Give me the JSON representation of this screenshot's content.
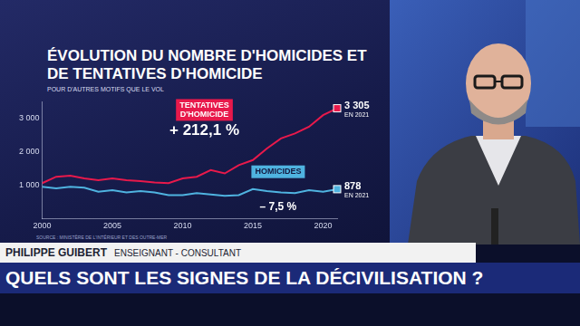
{
  "chart_data": {
    "type": "line",
    "title": "ÉVOLUTION DU NOMBRE D'HOMICIDES ET DE TENTATIVES D'HOMICIDE",
    "subtitle": "POUR D'AUTRES MOTIFS QUE LE VOL",
    "source": "SOURCE : MINISTÈRE DE L'INTÉRIEUR ET DES OUTRE-MER",
    "x": [
      2000,
      2001,
      2002,
      2003,
      2004,
      2005,
      2006,
      2007,
      2008,
      2009,
      2010,
      2011,
      2012,
      2013,
      2014,
      2015,
      2016,
      2017,
      2018,
      2019,
      2020,
      2021
    ],
    "xlim": [
      2000,
      2021
    ],
    "xticks": [
      2000,
      2005,
      2010,
      2015,
      2020
    ],
    "ylim": [
      0,
      3500
    ],
    "yticks": [
      {
        "value": 1000,
        "label": "1 000"
      },
      {
        "value": 2000,
        "label": "2 000"
      },
      {
        "value": 3000,
        "label": "3 000"
      }
    ],
    "grid": false,
    "series": [
      {
        "name": "TENTATIVES D'HOMICIDE",
        "color": "#e8194b",
        "values": [
          1059,
          1250,
          1280,
          1200,
          1150,
          1200,
          1150,
          1120,
          1080,
          1060,
          1200,
          1250,
          1450,
          1350,
          1600,
          1750,
          2100,
          2400,
          2550,
          2750,
          3100,
          3305
        ],
        "change": "+ 212,1 %",
        "last_label": "3 305",
        "last_note": "EN 2021"
      },
      {
        "name": "HOMICIDES",
        "color": "#4fb3e0",
        "values": [
          949,
          900,
          950,
          920,
          800,
          850,
          780,
          820,
          780,
          700,
          700,
          760,
          720,
          680,
          700,
          880,
          820,
          780,
          760,
          850,
          800,
          878
        ],
        "change": "– 7,5 %",
        "last_label": "878",
        "last_note": "EN 2021"
      }
    ]
  },
  "banner": {
    "name": "PHILIPPE GUIBERT",
    "role": "ENSEIGNANT - CONSULTANT",
    "headline": "QUELS SONT LES SIGNES DE LA DÉCIVILISATION ?"
  }
}
